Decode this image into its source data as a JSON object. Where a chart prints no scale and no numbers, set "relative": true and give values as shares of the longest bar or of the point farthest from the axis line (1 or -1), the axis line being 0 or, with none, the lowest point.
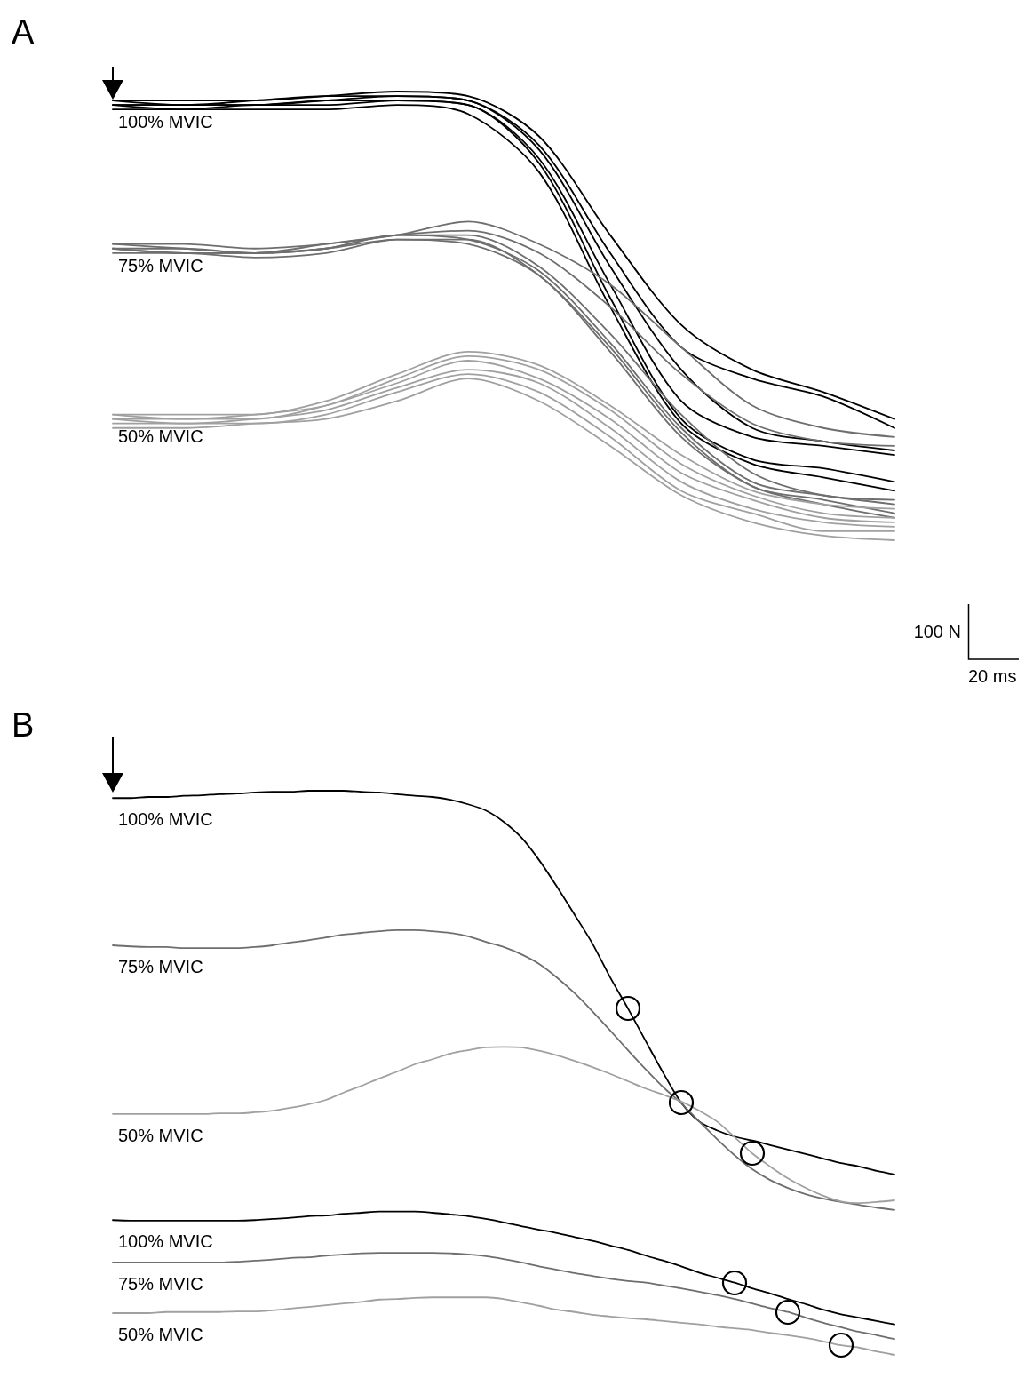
{
  "chart_data": [
    {
      "type": "line",
      "title": "A",
      "relative": true,
      "grid": false,
      "marker": "none",
      "line_style": "solid",
      "annotations": [
        "100 N",
        "20 ms"
      ],
      "categories": [
        null,
        null,
        null,
        null,
        null,
        null,
        null,
        null,
        null,
        null,
        null,
        null
      ],
      "series": [
        {
          "name": "100% MVIC",
          "color": "#000000",
          "values": [
            0.98,
            0.98,
            0.98,
            0.99,
            1,
            0.99,
            0.9,
            0.68,
            0.48,
            0.38,
            0.33,
            0.27
          ]
        },
        {
          "color": "#000000",
          "values": [
            0.98,
            0.97,
            0.98,
            0.99,
            0.99,
            0.98,
            0.88,
            0.64,
            0.43,
            0.36,
            0.32,
            0.25
          ]
        },
        {
          "color": "#000000",
          "values": [
            0.97,
            0.97,
            0.97,
            0.98,
            0.99,
            0.98,
            0.87,
            0.61,
            0.38,
            0.25,
            0.22,
            0.2
          ]
        },
        {
          "color": "#000000",
          "values": [
            0.97,
            0.97,
            0.97,
            0.98,
            0.98,
            0.97,
            0.85,
            0.57,
            0.31,
            0.23,
            0.21,
            0.19
          ]
        },
        {
          "color": "#000000",
          "values": [
            0.97,
            0.96,
            0.97,
            0.97,
            0.98,
            0.97,
            0.84,
            0.54,
            0.27,
            0.18,
            0.16,
            0.13
          ]
        },
        {
          "color": "#000000",
          "values": [
            0.96,
            0.96,
            0.96,
            0.96,
            0.97,
            0.95,
            0.82,
            0.52,
            0.26,
            0.17,
            0.14,
            0.11
          ]
        },
        {
          "name": "75% MVIC",
          "color": "#6e6e6e",
          "values": [
            0.66,
            0.66,
            0.65,
            0.66,
            0.68,
            0.71,
            0.66,
            0.57,
            0.43,
            0.3,
            0.25,
            0.23
          ]
        },
        {
          "color": "#6e6e6e",
          "values": [
            0.66,
            0.65,
            0.64,
            0.66,
            0.68,
            0.69,
            0.64,
            0.52,
            0.37,
            0.26,
            0.22,
            0.21
          ]
        },
        {
          "color": "#6e6e6e",
          "values": [
            0.65,
            0.65,
            0.64,
            0.65,
            0.68,
            0.68,
            0.61,
            0.46,
            0.28,
            0.15,
            0.1,
            0.09
          ]
        },
        {
          "color": "#6e6e6e",
          "values": [
            0.65,
            0.64,
            0.64,
            0.65,
            0.68,
            0.67,
            0.6,
            0.44,
            0.25,
            0.13,
            0.1,
            0.08
          ]
        },
        {
          "color": "#6e6e6e",
          "values": [
            0.65,
            0.64,
            0.64,
            0.65,
            0.67,
            0.67,
            0.59,
            0.43,
            0.24,
            0.12,
            0.09,
            0.06
          ]
        },
        {
          "color": "#6e6e6e",
          "values": [
            0.64,
            0.64,
            0.63,
            0.64,
            0.67,
            0.66,
            0.59,
            0.42,
            0.23,
            0.12,
            0.08,
            0.05
          ]
        },
        {
          "name": "50% MVIC",
          "color": "#a0a0a0",
          "values": [
            0.28,
            0.28,
            0.28,
            0.31,
            0.37,
            0.42,
            0.39,
            0.3,
            0.19,
            0.11,
            0.08,
            0.07
          ]
        },
        {
          "color": "#a0a0a0",
          "values": [
            0.28,
            0.27,
            0.28,
            0.3,
            0.36,
            0.41,
            0.38,
            0.29,
            0.17,
            0.1,
            0.06,
            0.05
          ]
        },
        {
          "color": "#a0a0a0",
          "values": [
            0.27,
            0.27,
            0.27,
            0.3,
            0.35,
            0.4,
            0.36,
            0.27,
            0.15,
            0.09,
            0.05,
            0.04
          ]
        },
        {
          "color": "#a0a0a0",
          "values": [
            0.27,
            0.26,
            0.27,
            0.29,
            0.34,
            0.38,
            0.35,
            0.25,
            0.13,
            0.07,
            0.04,
            0.03
          ]
        },
        {
          "color": "#a0a0a0",
          "values": [
            0.26,
            0.26,
            0.26,
            0.28,
            0.33,
            0.37,
            0.33,
            0.23,
            0.11,
            0.06,
            0.02,
            0.02
          ]
        },
        {
          "color": "#a0a0a0",
          "values": [
            0.25,
            0.25,
            0.26,
            0.27,
            0.31,
            0.36,
            0.31,
            0.21,
            0.1,
            0.04,
            0.01,
            0
          ]
        }
      ]
    },
    {
      "type": "line",
      "title": "B",
      "relative": true,
      "grid": false,
      "marker": "none",
      "line_style": "solid",
      "categories": [
        null,
        null,
        null,
        null,
        null,
        null,
        null,
        null,
        null,
        null,
        null,
        null,
        null,
        null,
        null,
        null,
        null,
        null,
        null,
        null,
        null,
        null,
        null,
        null,
        null,
        null,
        null,
        null,
        null,
        null,
        null,
        null,
        null,
        null,
        null,
        null,
        null,
        null,
        null,
        null,
        null,
        null,
        null,
        null,
        null
      ],
      "series": [
        {
          "name": "100% MVIC",
          "color": "#000000",
          "values": [
            0.987,
            0.987,
            0.989,
            0.989,
            0.991,
            0.992,
            0.994,
            0.995,
            0.997,
            0.998,
            0.998,
            1,
            1,
            1,
            0.998,
            0.997,
            0.994,
            0.991,
            0.989,
            0.984,
            0.976,
            0.965,
            0.945,
            0.917,
            0.877,
            0.83,
            0.78,
            0.729,
            0.669,
            0.614,
            0.556,
            0.499,
            0.447,
            0.414,
            0.398,
            0.387,
            0.38,
            0.372,
            0.364,
            0.356,
            0.348,
            0.34,
            0.334,
            0.326,
            0.32
          ]
        },
        {
          "name": "75% MVIC",
          "color": "#6e6e6e",
          "values": [
            0.726,
            0.724,
            0.723,
            0.723,
            0.721,
            0.721,
            0.721,
            0.721,
            0.723,
            0.726,
            0.731,
            0.735,
            0.74,
            0.745,
            0.748,
            0.751,
            0.753,
            0.753,
            0.751,
            0.748,
            0.742,
            0.732,
            0.723,
            0.71,
            0.693,
            0.669,
            0.641,
            0.609,
            0.575,
            0.54,
            0.506,
            0.474,
            0.446,
            0.414,
            0.383,
            0.354,
            0.329,
            0.31,
            0.296,
            0.285,
            0.277,
            0.271,
            0.266,
            0.261,
            0.257
          ]
        },
        {
          "name": "50% MVIC",
          "color": "#a0a0a0",
          "values": [
            0.427,
            0.427,
            0.427,
            0.427,
            0.427,
            0.427,
            0.428,
            0.428,
            0.43,
            0.433,
            0.438,
            0.444,
            0.452,
            0.465,
            0.477,
            0.49,
            0.502,
            0.515,
            0.524,
            0.534,
            0.54,
            0.545,
            0.546,
            0.545,
            0.539,
            0.531,
            0.521,
            0.51,
            0.498,
            0.485,
            0.472,
            0.461,
            0.449,
            0.433,
            0.414,
            0.386,
            0.357,
            0.334,
            0.313,
            0.296,
            0.282,
            0.272,
            0.269,
            0.271,
            0.274
          ]
        },
        {
          "name": "100% MVIC",
          "color": "#000000",
          "values": [
            0.239,
            0.238,
            0.238,
            0.238,
            0.238,
            0.238,
            0.238,
            0.238,
            0.239,
            0.241,
            0.243,
            0.246,
            0.247,
            0.25,
            0.252,
            0.254,
            0.254,
            0.254,
            0.252,
            0.249,
            0.246,
            0.241,
            0.235,
            0.228,
            0.222,
            0.216,
            0.209,
            0.202,
            0.194,
            0.186,
            0.176,
            0.167,
            0.157,
            0.146,
            0.137,
            0.128,
            0.118,
            0.109,
            0.099,
            0.09,
            0.08,
            0.072,
            0.066,
            0.06,
            0.054
          ]
        },
        {
          "name": "75% MVIC",
          "color": "#6e6e6e",
          "values": [
            0.164,
            0.164,
            0.164,
            0.164,
            0.164,
            0.164,
            0.164,
            0.165,
            0.167,
            0.169,
            0.172,
            0.173,
            0.176,
            0.178,
            0.18,
            0.181,
            0.181,
            0.181,
            0.181,
            0.18,
            0.178,
            0.175,
            0.17,
            0.164,
            0.157,
            0.151,
            0.145,
            0.14,
            0.135,
            0.131,
            0.128,
            0.123,
            0.118,
            0.112,
            0.106,
            0.099,
            0.091,
            0.083,
            0.076,
            0.066,
            0.057,
            0.049,
            0.041,
            0.035,
            0.028
          ]
        },
        {
          "name": "50% MVIC",
          "color": "#a0a0a0",
          "values": [
            0.074,
            0.074,
            0.074,
            0.076,
            0.076,
            0.076,
            0.076,
            0.077,
            0.077,
            0.079,
            0.082,
            0.085,
            0.088,
            0.091,
            0.094,
            0.098,
            0.099,
            0.101,
            0.102,
            0.102,
            0.102,
            0.102,
            0.099,
            0.093,
            0.087,
            0.08,
            0.076,
            0.071,
            0.068,
            0.065,
            0.063,
            0.06,
            0.057,
            0.054,
            0.05,
            0.047,
            0.044,
            0.039,
            0.035,
            0.03,
            0.024,
            0.017,
            0.013,
            0.006,
            0
          ]
        }
      ]
    }
  ]
}
